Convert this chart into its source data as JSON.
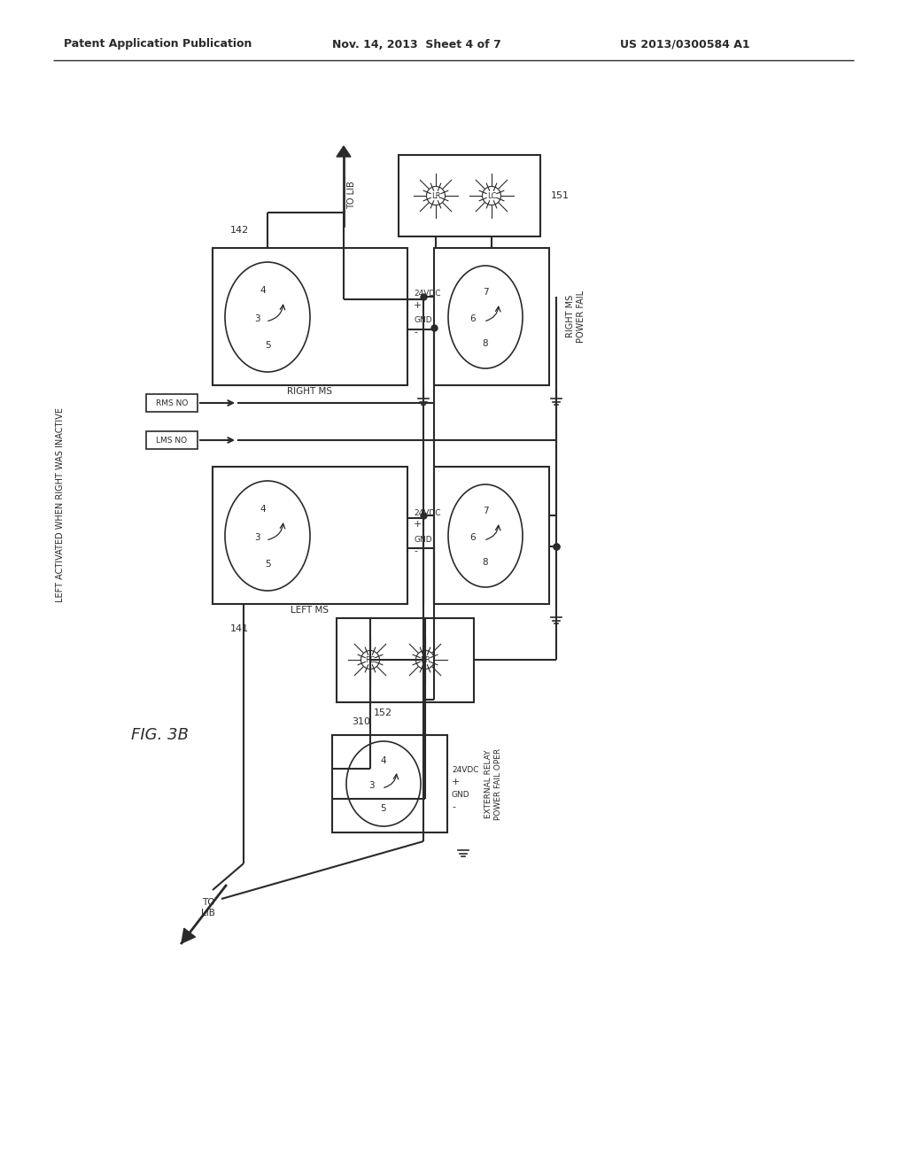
{
  "bg_color": "#ffffff",
  "header_text": "Patent Application Publication",
  "header_date": "Nov. 14, 2013  Sheet 4 of 7",
  "header_patent": "US 2013/0300584 A1",
  "fig_label": "FIG. 3B",
  "vertical_label": "LEFT ACTIVATED WHEN RIGHT WAS INACTIVE",
  "label_142": "142",
  "label_141": "141",
  "label_151": "151",
  "label_152": "152",
  "label_310": "310",
  "label_rms_no": "RMS NO",
  "label_lms_no": "LMS NO",
  "label_right_ms": "RIGHT MS",
  "label_left_ms": "LEFT MS",
  "label_right_ms_pf": "RIGHT MS\nPOWER FAIL",
  "label_24vdc": "24VDC",
  "label_gnd": "GND",
  "label_ext_relay": "EXTERNAL RELAY\nPOWER FAIL OPER",
  "label_to_lib": "TO LIB",
  "lc": "#2a2a2a",
  "tc": "#2a2a2a"
}
